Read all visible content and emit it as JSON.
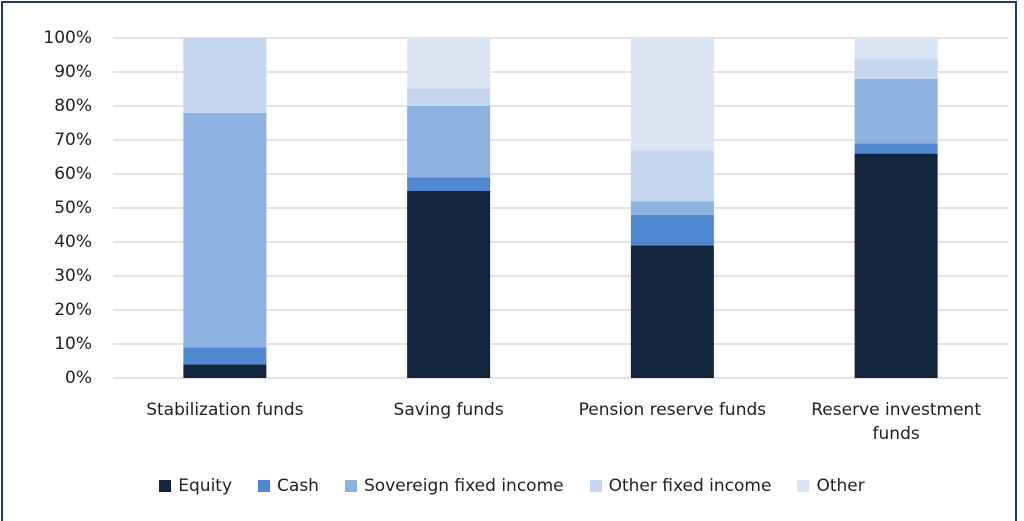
{
  "chart_data": {
    "type": "stacked_bar",
    "categories": [
      "Stabilization funds",
      "Saving funds",
      "Pension reserve funds",
      "Reserve investment funds"
    ],
    "series": [
      {
        "name": "Equity",
        "color": "#13253f",
        "values": [
          4,
          55,
          39,
          66
        ]
      },
      {
        "name": "Cash",
        "color": "#4f88d0",
        "values": [
          5,
          4,
          9,
          3
        ]
      },
      {
        "name": "Sovereign fixed income",
        "color": "#8db1e0",
        "values": [
          69,
          21,
          4,
          19
        ]
      },
      {
        "name": "Other fixed income",
        "color": "#c5d7ef",
        "values": [
          22,
          5,
          15,
          6
        ]
      },
      {
        "name": "Other",
        "color": "#dae4f2",
        "values": [
          0,
          15,
          33,
          6
        ]
      }
    ],
    "ylim": [
      0,
      100
    ],
    "yticks": [
      {
        "value": 0,
        "label": "0%"
      },
      {
        "value": 10,
        "label": "10%"
      },
      {
        "value": 20,
        "label": "20%"
      },
      {
        "value": 30,
        "label": "30%"
      },
      {
        "value": 40,
        "label": "40%"
      },
      {
        "value": 50,
        "label": "50%"
      },
      {
        "value": 60,
        "label": "60%"
      },
      {
        "value": 70,
        "label": "70%"
      },
      {
        "value": 80,
        "label": "80%"
      },
      {
        "value": 90,
        "label": "90%"
      },
      {
        "value": 100,
        "label": "100%"
      }
    ],
    "grid": true,
    "legend": "bottom"
  }
}
